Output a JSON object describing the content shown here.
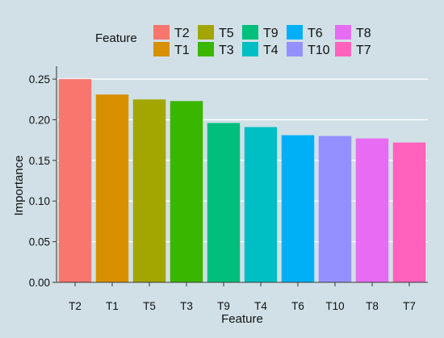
{
  "chart_data": {
    "type": "bar",
    "title": "",
    "xlabel": "Feature",
    "ylabel": "Importance",
    "ylim": [
      0,
      0.26
    ],
    "yticks": [
      0.0,
      0.05,
      0.1,
      0.15,
      0.2,
      0.25
    ],
    "ytick_labels": [
      "0.00",
      "0.05",
      "0.10",
      "0.15",
      "0.20",
      "0.25"
    ],
    "grid": true,
    "legend_position": "top",
    "legend_title": "Feature",
    "legend_order": [
      [
        "T2",
        "T5",
        "T9",
        "T6",
        "T8"
      ],
      [
        "T1",
        "T3",
        "T4",
        "T10",
        "T7"
      ]
    ],
    "categories": [
      "T2",
      "T1",
      "T5",
      "T3",
      "T9",
      "T4",
      "T6",
      "T10",
      "T8",
      "T7"
    ],
    "values": [
      0.25,
      0.231,
      0.225,
      0.223,
      0.196,
      0.191,
      0.181,
      0.18,
      0.177,
      0.172
    ],
    "colors": {
      "T2": "#F8766D",
      "T1": "#D89000",
      "T5": "#A3A500",
      "T3": "#39B600",
      "T9": "#00BF7D",
      "T4": "#00BFC4",
      "T6": "#00B0F6",
      "T10": "#9590FF",
      "T8": "#E76BF3",
      "T7": "#FF62BC"
    },
    "panel_background": "#D0E0E6",
    "grid_color": "#FFFFFF"
  }
}
